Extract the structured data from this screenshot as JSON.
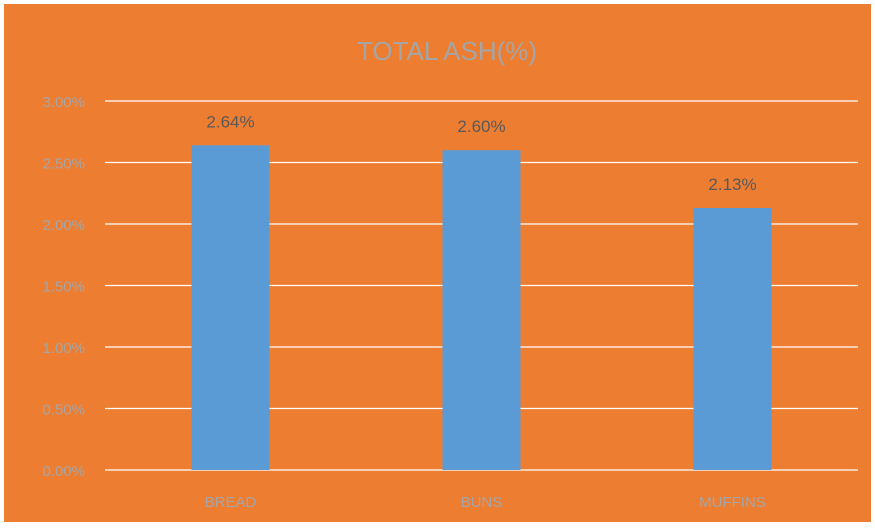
{
  "colors": {
    "background": "#ED7D31",
    "bar": "#5B9BD5",
    "gridline": "#FFFFFF",
    "title_text": "#A5A5A5",
    "tick_text": "#A5A5A5",
    "data_label_text": "#595959"
  },
  "chart_data": {
    "type": "bar",
    "title": "TOTAL ASH(%)",
    "xlabel": "",
    "ylabel": "",
    "categories": [
      "BREAD",
      "BUNS",
      "MUFFINS"
    ],
    "values": [
      0.0264,
      0.026,
      0.0213
    ],
    "data_labels": [
      "2.64%",
      "2.60%",
      "2.13%"
    ],
    "ylim": [
      0,
      0.03
    ],
    "yticks": [
      0,
      0.005,
      0.01,
      0.015,
      0.02,
      0.025,
      0.03
    ],
    "ytick_labels": [
      "0.00%",
      "0.50%",
      "1.00%",
      "1.50%",
      "2.00%",
      "2.50%",
      "3.00%"
    ],
    "grid": true,
    "legend": "none"
  }
}
